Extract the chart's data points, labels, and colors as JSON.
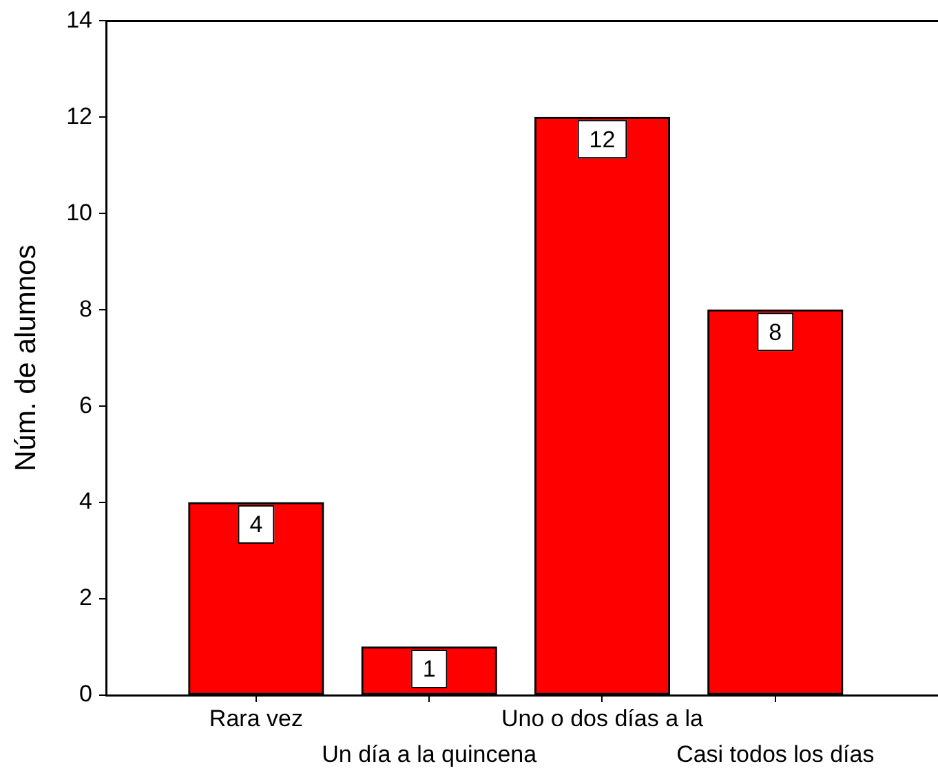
{
  "chart_data": {
    "type": "bar",
    "ylabel": "Núm. de alumnos",
    "categories": [
      "Rara vez",
      "Un día a la quincena",
      "Uno o dos días a la",
      "Casi todos los días"
    ],
    "values": [
      4,
      1,
      12,
      8
    ],
    "color": "#ff0000",
    "ylim": [
      0,
      14
    ],
    "yticks": [
      0,
      2,
      4,
      6,
      8,
      10,
      12,
      14
    ],
    "grid": false,
    "legend": false,
    "data_labels": true
  }
}
